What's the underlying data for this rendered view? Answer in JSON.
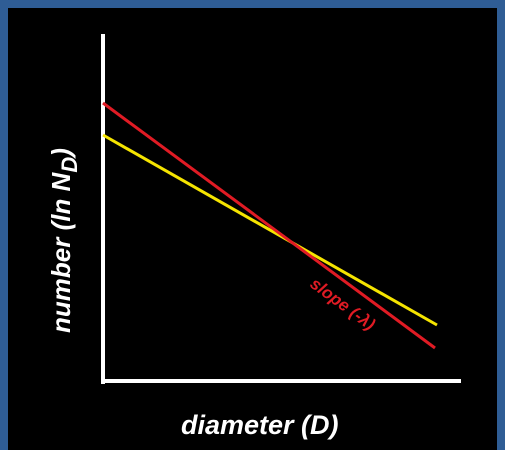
{
  "colors": {
    "frame": "#2f5d95",
    "background": "#000000",
    "axes": "#ffffff",
    "red_line": "#e01b24",
    "yellow_line": "#f5e400",
    "label_text": "#ffffff",
    "slope_label": "#e01b24"
  },
  "axes": {
    "y_label_main": "number (ln N",
    "y_label_sub": "D",
    "y_label_end": ")",
    "x_label": "diameter (D)"
  },
  "annotation": {
    "slope_label": "slope (-λ)"
  },
  "lines": [
    {
      "color_key": "red_line",
      "description": "steeper distribution line"
    },
    {
      "color_key": "yellow_line",
      "description": "shallower distribution line"
    }
  ]
}
